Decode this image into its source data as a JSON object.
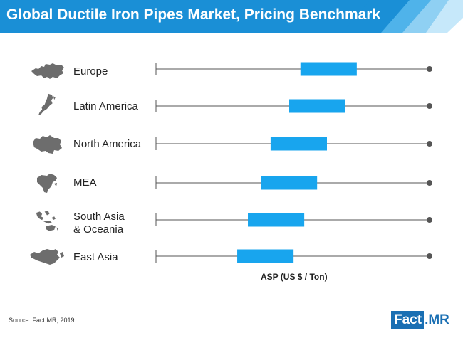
{
  "title": "Global Ductile Iron Pipes Market, Pricing Benchmark",
  "colors": {
    "banner": "#1a8fd6",
    "banner_dark": "#1570b0",
    "box": "#18a5ee",
    "whisker": "#555555",
    "map": "#6d6d6d"
  },
  "chart_data": {
    "type": "box",
    "title": "Global Ductile Iron Pipes Market, Pricing Benchmark",
    "xlabel": "ASP (US $ / Ton)",
    "ylabel": "",
    "x_ticks": "none",
    "categories": [
      "Europe",
      "Latin America",
      "North America",
      "MEA",
      "South Asia & Oceania",
      "East Asia"
    ],
    "category_labels": [
      {
        "line1": "Europe",
        "line2": ""
      },
      {
        "line1": "Latin America",
        "line2": ""
      },
      {
        "line1": "North America",
        "line2": ""
      },
      {
        "line1": "MEA",
        "line2": ""
      },
      {
        "line1": "South Asia",
        "line2": "& Oceania"
      },
      {
        "line1": "East Asia",
        "line2": ""
      }
    ],
    "series": [
      {
        "category": "Europe",
        "min": 0,
        "q1": 0.528,
        "q3": 0.734,
        "max": 1.0
      },
      {
        "category": "Latin America",
        "min": 0,
        "q1": 0.487,
        "q3": 0.692,
        "max": 1.0
      },
      {
        "category": "North America",
        "min": 0,
        "q1": 0.419,
        "q3": 0.625,
        "max": 1.0
      },
      {
        "category": "MEA",
        "min": 0,
        "q1": 0.383,
        "q3": 0.589,
        "max": 1.0
      },
      {
        "category": "South Asia & Oceania",
        "min": 0,
        "q1": 0.336,
        "q3": 0.542,
        "max": 1.0
      },
      {
        "category": "East Asia",
        "min": 0,
        "q1": 0.297,
        "q3": 0.503,
        "max": 1.0
      }
    ]
  },
  "source": "Source: Fact.MR, 2019",
  "logo": {
    "part1": "Fact",
    "part2": ".",
    "part3": "MR"
  },
  "icons": [
    "europe-map-icon",
    "latin-america-map-icon",
    "north-america-map-icon",
    "mea-map-icon",
    "south-asia-oceania-map-icon",
    "east-asia-map-icon"
  ]
}
